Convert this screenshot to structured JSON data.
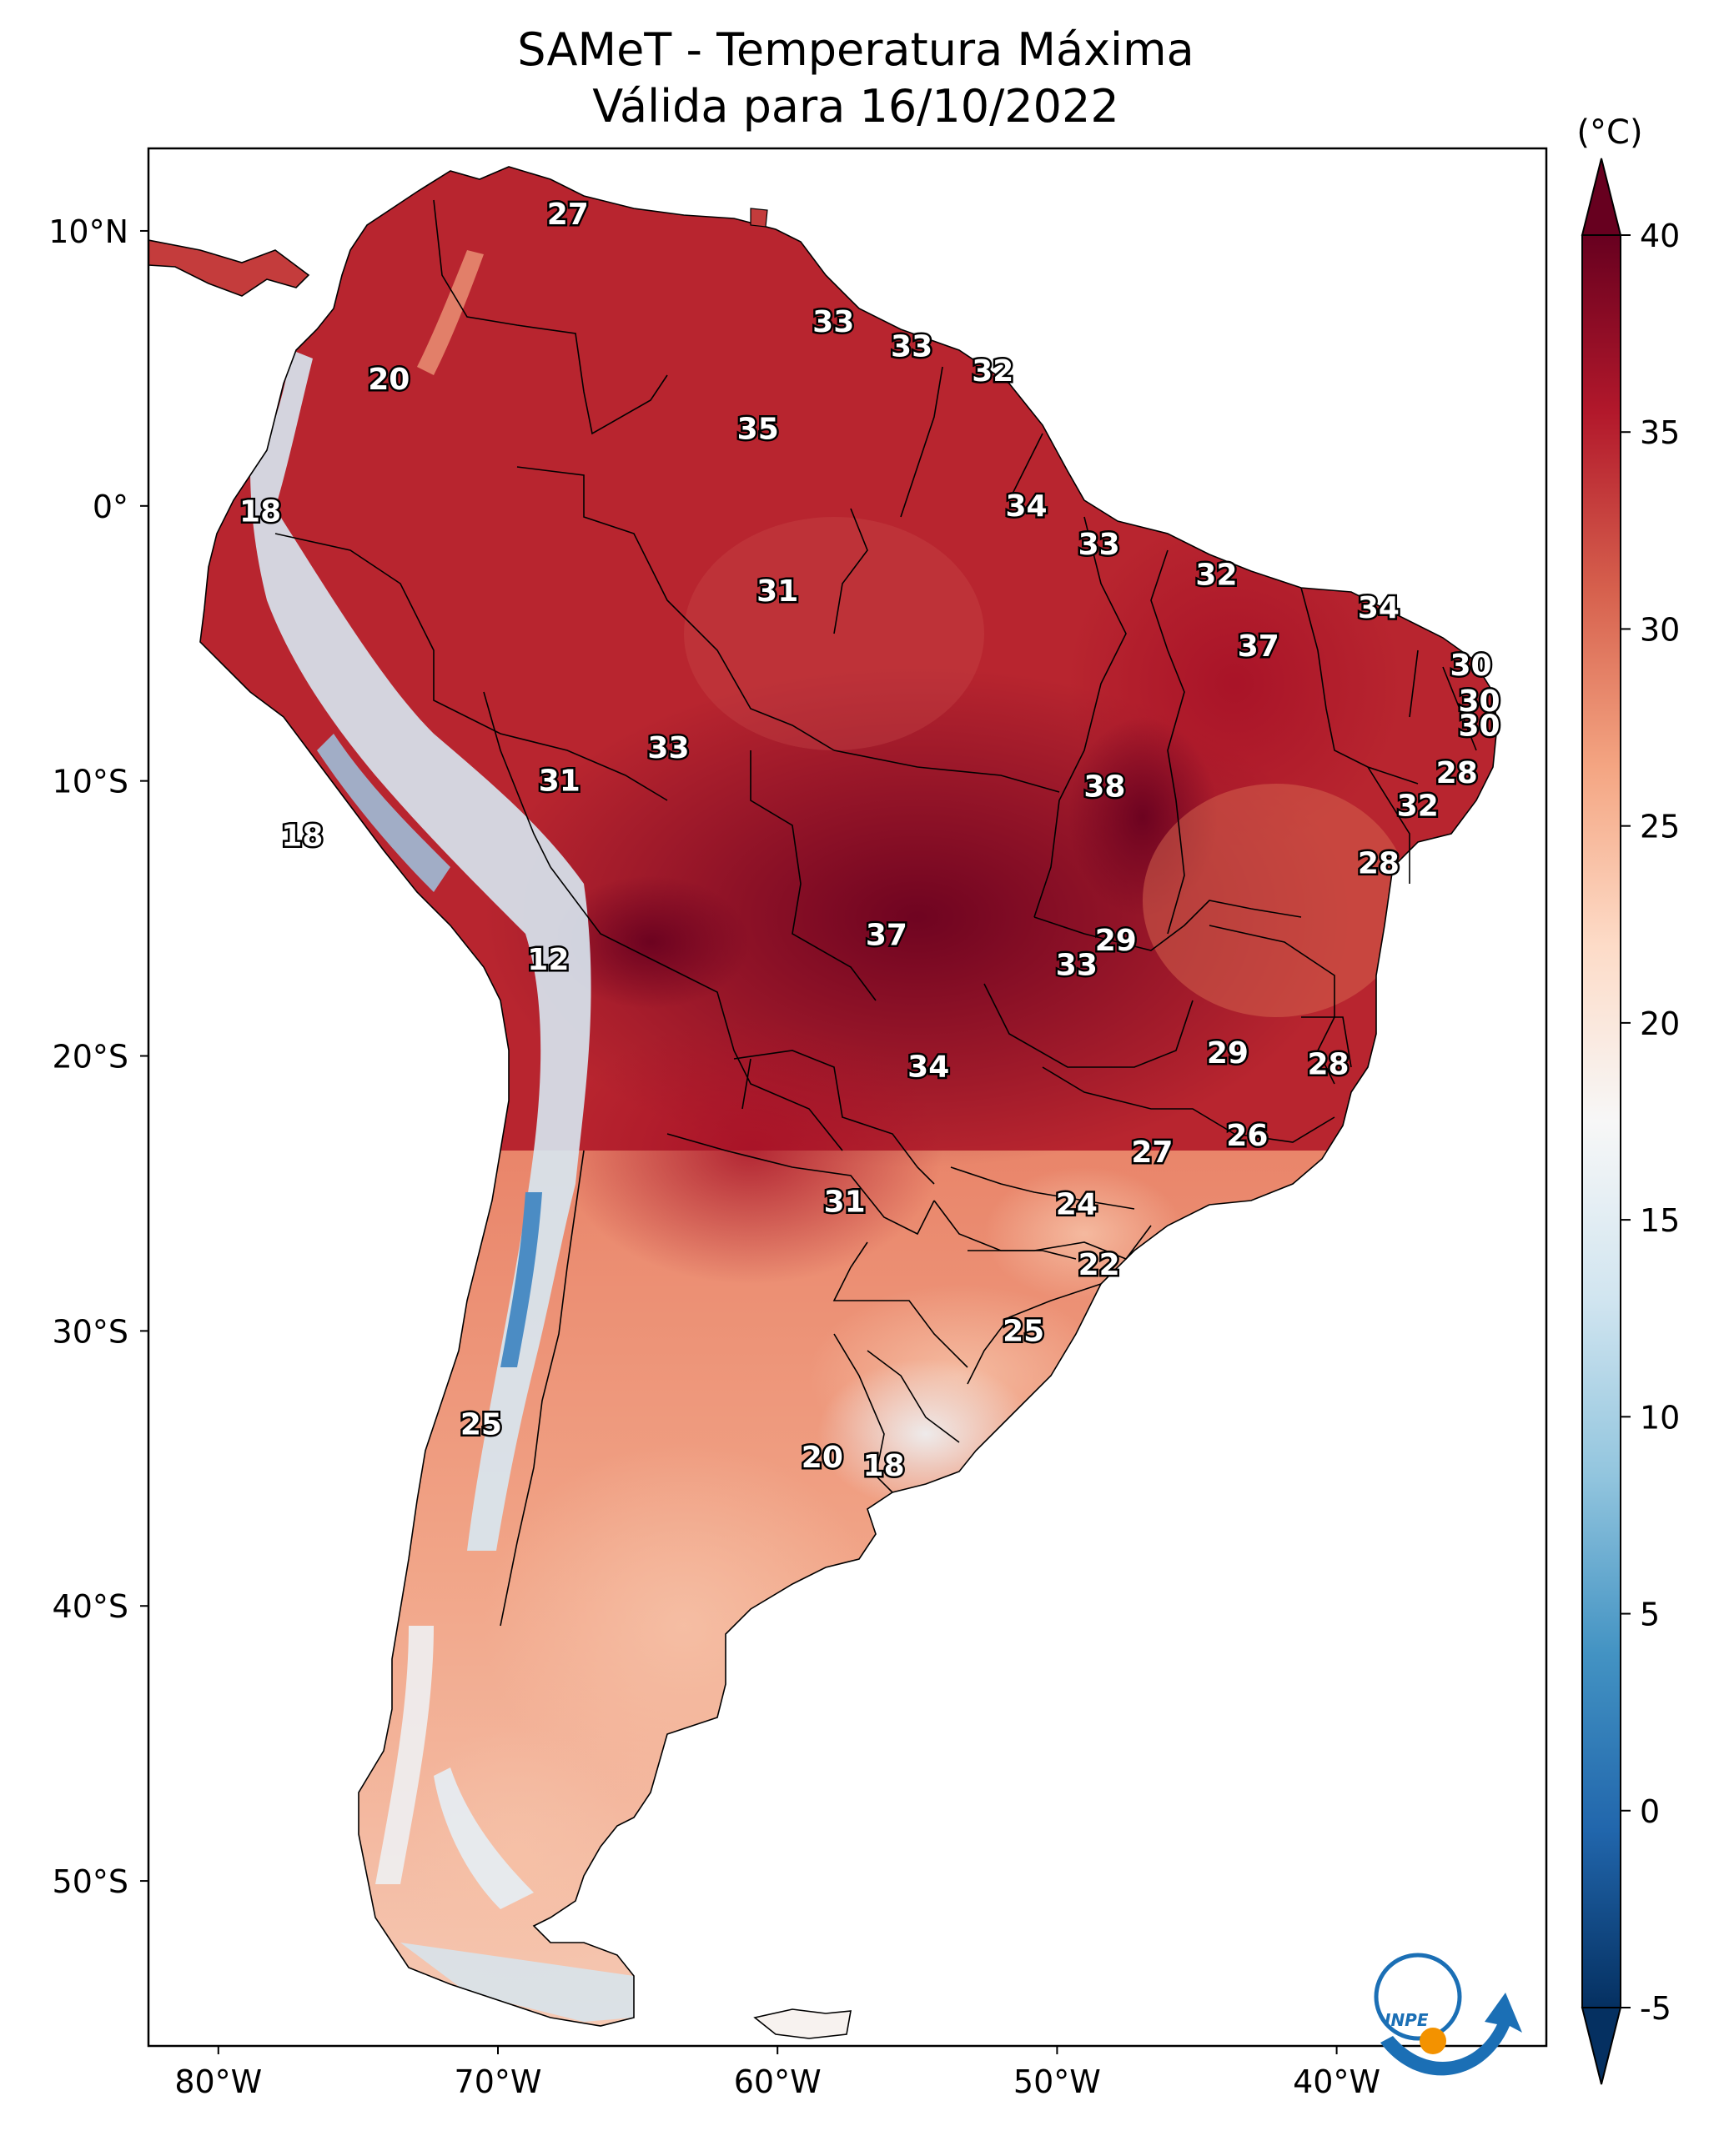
{
  "title_line1": "SAMeT - Temperatura Máxima",
  "title_line2": "Válida para 16/10/2022",
  "logo_text": "INPE",
  "colorbar": {
    "unit": "(°C)",
    "ticks": [
      40,
      35,
      30,
      25,
      20,
      15,
      10,
      5,
      0,
      -5
    ],
    "tick_labels": [
      "40",
      "35",
      "30",
      "25",
      "20",
      "15",
      "10",
      "5",
      "0",
      "-5"
    ],
    "range": [
      -5,
      40
    ],
    "colormap": "RdBu_r",
    "colors": [
      "#053061",
      "#2166ac",
      "#4393c3",
      "#92c5de",
      "#d1e5f0",
      "#f7f7f7",
      "#fddbc7",
      "#f4a582",
      "#d6604d",
      "#b2182b",
      "#67001f"
    ]
  },
  "axes": {
    "lon_labels": [
      "80°W",
      "70°W",
      "60°W",
      "50°W",
      "40°W"
    ],
    "lat_labels": [
      "10°N",
      "0°",
      "10°S",
      "20°S",
      "30°S",
      "40°S",
      "50°S"
    ],
    "lon_values": [
      -80,
      -70,
      -60,
      -50,
      -40
    ],
    "lat_values": [
      10,
      0,
      -10,
      -20,
      -30,
      -40,
      -50
    ],
    "lon_range": [
      -82.5,
      -32.5
    ],
    "lat_range": [
      -56,
      13
    ]
  },
  "city_values": [
    {
      "lon": -67.5,
      "lat": 10.6,
      "label": "27"
    },
    {
      "lon": -73.9,
      "lat": 4.6,
      "label": "20"
    },
    {
      "lon": -58.0,
      "lat": 6.7,
      "label": "33"
    },
    {
      "lon": -55.2,
      "lat": 5.8,
      "label": "33"
    },
    {
      "lon": -52.3,
      "lat": 4.9,
      "label": "32"
    },
    {
      "lon": -60.7,
      "lat": 2.8,
      "label": "35"
    },
    {
      "lon": -51.1,
      "lat": 0.0,
      "label": "34"
    },
    {
      "lon": -78.5,
      "lat": -0.2,
      "label": "18"
    },
    {
      "lon": -48.5,
      "lat": -1.4,
      "label": "33"
    },
    {
      "lon": -44.3,
      "lat": -2.5,
      "label": "32"
    },
    {
      "lon": -60.0,
      "lat": -3.1,
      "label": "31"
    },
    {
      "lon": -38.5,
      "lat": -3.7,
      "label": "34"
    },
    {
      "lon": -42.8,
      "lat": -5.1,
      "label": "37"
    },
    {
      "lon": -35.2,
      "lat": -5.8,
      "label": "30"
    },
    {
      "lon": -34.9,
      "lat": -7.1,
      "label": "30"
    },
    {
      "lon": -34.9,
      "lat": -8.0,
      "label": "30"
    },
    {
      "lon": -63.9,
      "lat": -8.8,
      "label": "33"
    },
    {
      "lon": -35.7,
      "lat": -9.7,
      "label": "28"
    },
    {
      "lon": -67.8,
      "lat": -10.0,
      "label": "31"
    },
    {
      "lon": -48.3,
      "lat": -10.2,
      "label": "38"
    },
    {
      "lon": -37.1,
      "lat": -10.9,
      "label": "32"
    },
    {
      "lon": -77.0,
      "lat": -12.0,
      "label": "18"
    },
    {
      "lon": -38.5,
      "lat": -13.0,
      "label": "28"
    },
    {
      "lon": -56.1,
      "lat": -15.6,
      "label": "37"
    },
    {
      "lon": -47.9,
      "lat": -15.8,
      "label": "29"
    },
    {
      "lon": -49.3,
      "lat": -16.7,
      "label": "33"
    },
    {
      "lon": -68.2,
      "lat": -16.5,
      "label": "12"
    },
    {
      "lon": -43.9,
      "lat": -19.9,
      "label": "29"
    },
    {
      "lon": -40.3,
      "lat": -20.3,
      "label": "28"
    },
    {
      "lon": -54.6,
      "lat": -20.4,
      "label": "34"
    },
    {
      "lon": -43.2,
      "lat": -22.9,
      "label": "26"
    },
    {
      "lon": -46.6,
      "lat": -23.5,
      "label": "27"
    },
    {
      "lon": -57.6,
      "lat": -25.3,
      "label": "31"
    },
    {
      "lon": -49.3,
      "lat": -25.4,
      "label": "24"
    },
    {
      "lon": -48.5,
      "lat": -27.6,
      "label": "22"
    },
    {
      "lon": -51.2,
      "lat": -30.0,
      "label": "25"
    },
    {
      "lon": -70.6,
      "lat": -33.4,
      "label": "25"
    },
    {
      "lon": -58.4,
      "lat": -34.6,
      "label": "20"
    },
    {
      "lon": -56.2,
      "lat": -34.9,
      "label": "18"
    }
  ]
}
